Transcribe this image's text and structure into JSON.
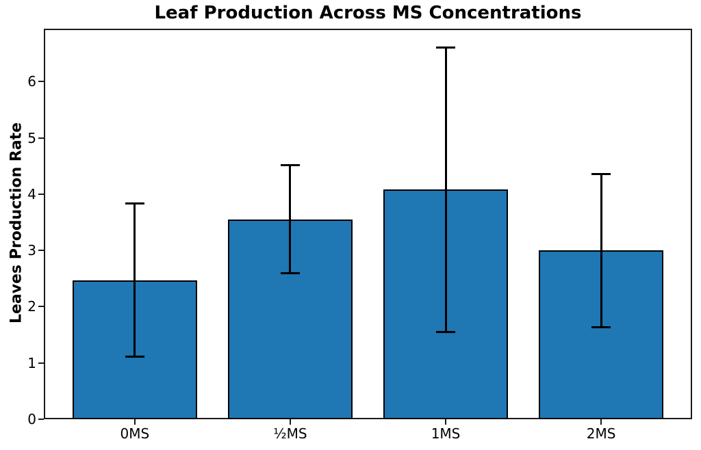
{
  "chart_data": {
    "type": "bar",
    "title": "Leaf Production Across MS Concentrations",
    "ylabel": "Leaves Production Rate",
    "xlabel": "",
    "categories": [
      "0MS",
      "½MS",
      "1MS",
      "2MS"
    ],
    "values": [
      2.47,
      3.55,
      4.08,
      3.0
    ],
    "error": [
      1.36,
      0.96,
      2.53,
      1.36
    ],
    "ylim": [
      0,
      6.94
    ],
    "yticks": [
      0,
      1,
      2,
      3,
      4,
      5,
      6
    ],
    "xlim": [
      -0.585,
      3.585
    ],
    "bar_width_fraction": 0.8,
    "grid": false,
    "legend": "none",
    "colors": {
      "bar_fill": "#1f77b4",
      "bar_edge": "#000000",
      "error_bar": "#000000",
      "axis": "#1a1a1a",
      "text": "#000000",
      "background": "#ffffff"
    }
  }
}
